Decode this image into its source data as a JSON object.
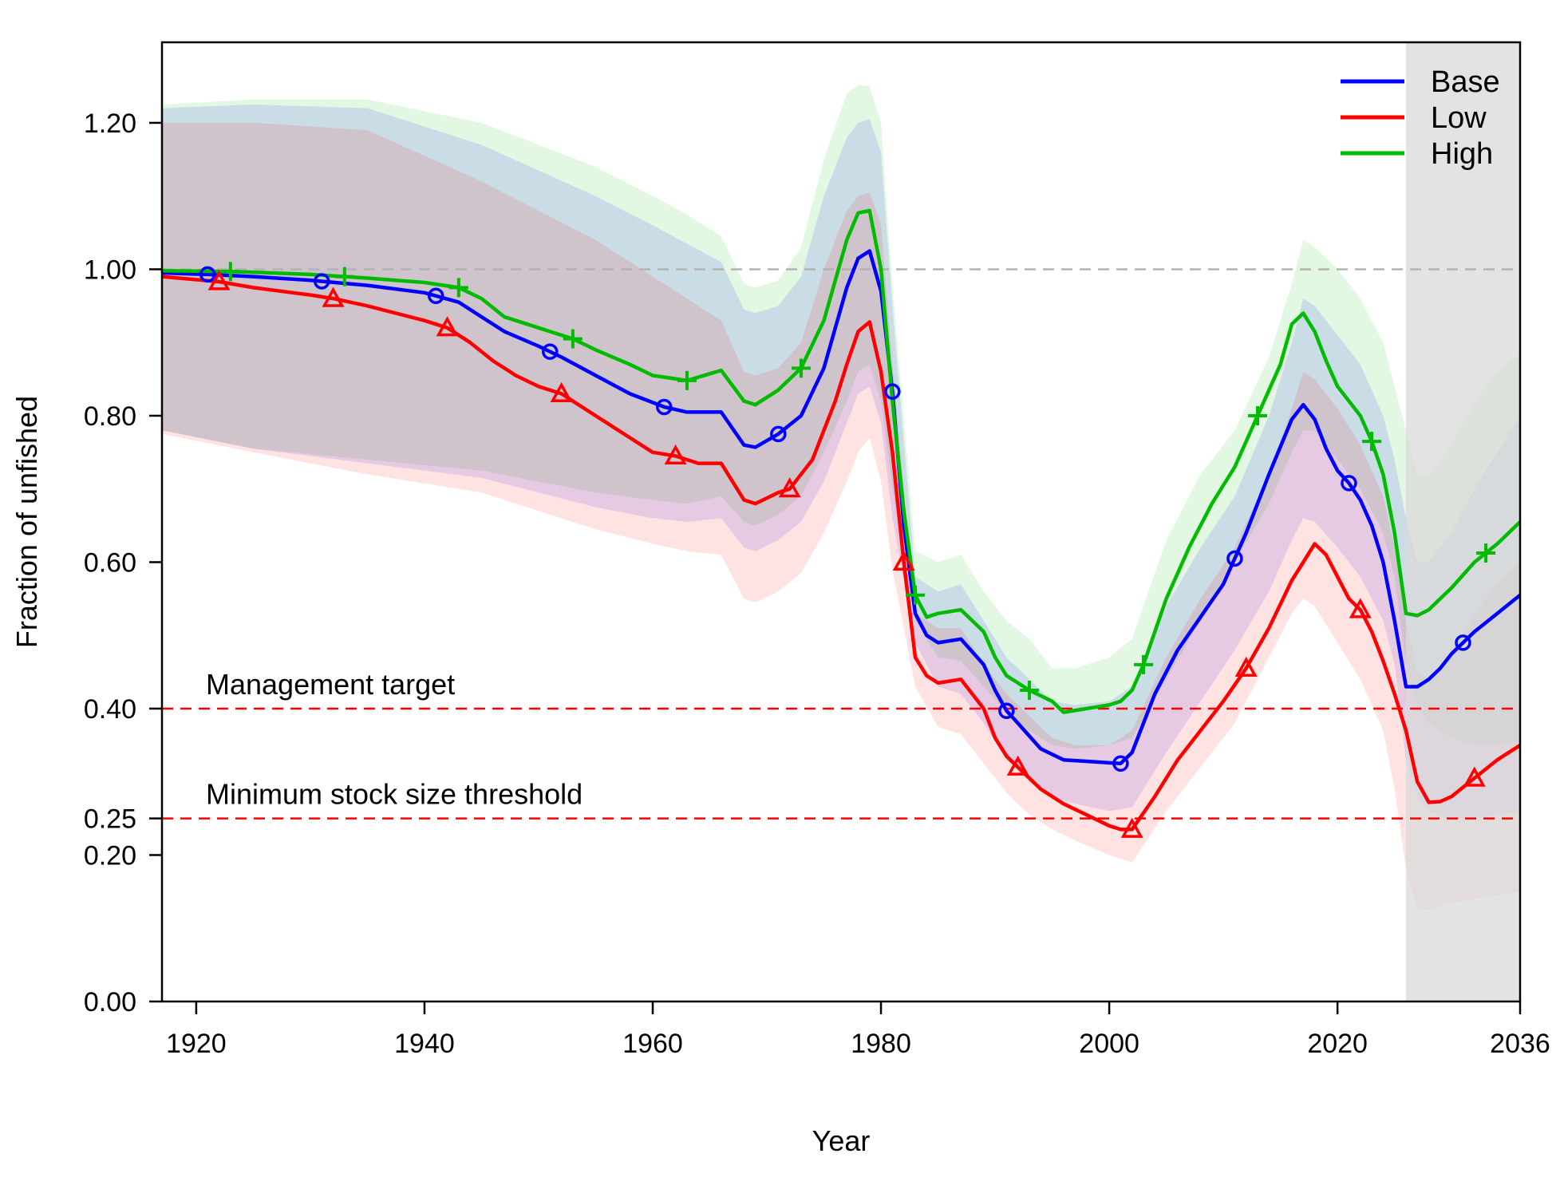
{
  "chart_data": {
    "type": "line",
    "title": "",
    "xlabel": "Year",
    "ylabel": "Fraction of unfished",
    "xlim": [
      1917,
      2036
    ],
    "ylim": [
      0,
      1.31
    ],
    "x_ticks": [
      1920,
      1940,
      1960,
      1980,
      2000,
      2020,
      2036
    ],
    "x_tick_labels": [
      "1920",
      "1940",
      "1960",
      "1980",
      "2000",
      "2020",
      "2036"
    ],
    "y_ticks": [
      0,
      0.2,
      0.25,
      0.4,
      0.6,
      0.8,
      1.0,
      1.2
    ],
    "y_tick_labels": [
      "0.00",
      "0.20",
      "0.25",
      "0.40",
      "0.60",
      "0.80",
      "1.00",
      "1.20"
    ],
    "forecast_start": 2026,
    "legend_position": "top-right",
    "reference_lines": [
      {
        "y": 1.0,
        "color": "#b3b3b3",
        "label": ""
      },
      {
        "y": 0.4,
        "color": "#ff0000",
        "label": "Management target"
      },
      {
        "y": 0.25,
        "color": "#ff0000",
        "label": "Minimum stock size threshold"
      }
    ],
    "series": [
      {
        "name": "Base",
        "color": "#0000ff",
        "marker": "circle",
        "x": [
          1917,
          1921,
          1925,
          1930,
          1935,
          1940,
          1943,
          1945,
          1947,
          1950,
          1952,
          1955,
          1958,
          1961,
          1963,
          1966,
          1968,
          1969,
          1971,
          1973,
          1975,
          1977,
          1978,
          1979,
          1980,
          1981,
          1982,
          1983,
          1984,
          1985,
          1987,
          1989,
          1990,
          1991,
          1992,
          1994,
          1996,
          1998,
          2000,
          2001,
          2002,
          2004,
          2006,
          2008,
          2010,
          2012,
          2014,
          2016,
          2017,
          2018,
          2019,
          2020,
          2021,
          2022,
          2023,
          2024,
          2025,
          2026,
          2027,
          2028,
          2029,
          2030,
          2031,
          2032,
          2034,
          2036
        ],
        "y": [
          0.995,
          0.993,
          0.99,
          0.985,
          0.978,
          0.968,
          0.955,
          0.935,
          0.915,
          0.895,
          0.88,
          0.855,
          0.83,
          0.812,
          0.805,
          0.805,
          0.76,
          0.757,
          0.775,
          0.8,
          0.865,
          0.975,
          1.015,
          1.025,
          0.97,
          0.833,
          0.65,
          0.53,
          0.5,
          0.49,
          0.495,
          0.46,
          0.425,
          0.397,
          0.38,
          0.345,
          0.33,
          0.328,
          0.326,
          0.325,
          0.34,
          0.42,
          0.48,
          0.525,
          0.57,
          0.64,
          0.72,
          0.795,
          0.815,
          0.795,
          0.755,
          0.725,
          0.708,
          0.685,
          0.65,
          0.6,
          0.52,
          0.43,
          0.43,
          0.44,
          0.455,
          0.475,
          0.49,
          0.505,
          0.53,
          0.555
        ]
      },
      {
        "name": "Low",
        "color": "#ff0000",
        "marker": "triangle",
        "x": [
          1917,
          1922,
          1925,
          1930,
          1932,
          1935,
          1940,
          1942,
          1944,
          1946,
          1948,
          1950,
          1952,
          1955,
          1958,
          1960,
          1962,
          1964,
          1966,
          1968,
          1969,
          1971,
          1972,
          1974,
          1976,
          1977,
          1978,
          1979,
          1980,
          1981,
          1982,
          1983,
          1984,
          1985,
          1987,
          1989,
          1990,
          1991,
          1992,
          1994,
          1996,
          1998,
          2000,
          2001,
          2002,
          2004,
          2006,
          2008,
          2010,
          2012,
          2014,
          2016,
          2017,
          2018,
          2019,
          2020,
          2021,
          2022,
          2023,
          2024,
          2025,
          2026,
          2027,
          2028,
          2029,
          2030,
          2032,
          2034,
          2036
        ],
        "y": [
          0.99,
          0.983,
          0.975,
          0.965,
          0.96,
          0.95,
          0.93,
          0.92,
          0.9,
          0.875,
          0.855,
          0.84,
          0.83,
          0.8,
          0.77,
          0.75,
          0.745,
          0.735,
          0.735,
          0.685,
          0.68,
          0.695,
          0.7,
          0.74,
          0.82,
          0.87,
          0.915,
          0.928,
          0.86,
          0.75,
          0.6,
          0.47,
          0.445,
          0.435,
          0.44,
          0.4,
          0.36,
          0.335,
          0.32,
          0.29,
          0.27,
          0.255,
          0.24,
          0.235,
          0.235,
          0.28,
          0.33,
          0.37,
          0.41,
          0.455,
          0.51,
          0.575,
          0.6,
          0.625,
          0.61,
          0.58,
          0.55,
          0.535,
          0.505,
          0.465,
          0.42,
          0.37,
          0.3,
          0.272,
          0.273,
          0.28,
          0.305,
          0.33,
          0.35
        ]
      },
      {
        "name": "High",
        "color": "#00bb00",
        "marker": "plus",
        "x": [
          1917,
          1923,
          1925,
          1930,
          1933,
          1935,
          1940,
          1943,
          1945,
          1947,
          1950,
          1953,
          1955,
          1958,
          1960,
          1963,
          1966,
          1968,
          1969,
          1971,
          1973,
          1975,
          1977,
          1978,
          1979,
          1980,
          1981,
          1982,
          1983,
          1984,
          1985,
          1987,
          1989,
          1990,
          1991,
          1993,
          1995,
          1996,
          1998,
          2000,
          2001,
          2002,
          2003,
          2005,
          2007,
          2009,
          2011,
          2013,
          2015,
          2016,
          2017,
          2018,
          2019,
          2020,
          2021,
          2022,
          2023,
          2024,
          2025,
          2026,
          2027,
          2028,
          2029,
          2030,
          2032,
          2034,
          2036
        ],
        "y": [
          0.998,
          0.997,
          0.996,
          0.993,
          0.99,
          0.988,
          0.982,
          0.975,
          0.96,
          0.935,
          0.92,
          0.905,
          0.89,
          0.87,
          0.855,
          0.848,
          0.862,
          0.82,
          0.815,
          0.835,
          0.865,
          0.93,
          1.04,
          1.077,
          1.08,
          1.0,
          0.82,
          0.67,
          0.555,
          0.525,
          0.53,
          0.535,
          0.505,
          0.47,
          0.445,
          0.425,
          0.41,
          0.395,
          0.4,
          0.405,
          0.41,
          0.425,
          0.46,
          0.55,
          0.62,
          0.68,
          0.73,
          0.8,
          0.87,
          0.925,
          0.94,
          0.915,
          0.875,
          0.84,
          0.82,
          0.8,
          0.765,
          0.72,
          0.64,
          0.53,
          0.527,
          0.535,
          0.55,
          0.565,
          0.6,
          0.625,
          0.655
        ]
      }
    ],
    "intervals": [
      {
        "series": "High",
        "color": "#00bb00",
        "x": [
          1917,
          1925,
          1935,
          1945,
          1950,
          1955,
          1960,
          1963,
          1966,
          1968,
          1969,
          1971,
          1973,
          1975,
          1977,
          1978,
          1979,
          1980,
          1981,
          1983,
          1985,
          1987,
          1989,
          1991,
          1993,
          1995,
          1997,
          2000,
          2002,
          2005,
          2008,
          2011,
          2014,
          2016,
          2017,
          2018,
          2020,
          2022,
          2024,
          2025,
          2026,
          2027,
          2028,
          2030,
          2032,
          2034,
          2036
        ],
        "lower": [
          0.78,
          0.755,
          0.74,
          0.725,
          0.71,
          0.695,
          0.685,
          0.68,
          0.69,
          0.655,
          0.65,
          0.665,
          0.69,
          0.75,
          0.82,
          0.86,
          0.87,
          0.82,
          0.7,
          0.52,
          0.47,
          0.465,
          0.43,
          0.395,
          0.37,
          0.35,
          0.345,
          0.35,
          0.36,
          0.44,
          0.52,
          0.6,
          0.68,
          0.75,
          0.78,
          0.78,
          0.74,
          0.7,
          0.64,
          0.58,
          0.46,
          0.4,
          0.38,
          0.36,
          0.35,
          0.35,
          0.355
        ],
        "upper": [
          1.225,
          1.232,
          1.232,
          1.2,
          1.17,
          1.14,
          1.1,
          1.075,
          1.045,
          0.98,
          0.975,
          0.985,
          1.03,
          1.15,
          1.24,
          1.252,
          1.25,
          1.2,
          0.98,
          0.615,
          0.6,
          0.61,
          0.56,
          0.52,
          0.495,
          0.455,
          0.455,
          0.47,
          0.495,
          0.63,
          0.72,
          0.78,
          0.88,
          0.98,
          1.04,
          1.03,
          1.0,
          0.96,
          0.9,
          0.84,
          0.78,
          0.72,
          0.72,
          0.76,
          0.82,
          0.86,
          0.885
        ]
      },
      {
        "series": "Base",
        "color": "#0000ff",
        "x": [
          1917,
          1925,
          1935,
          1945,
          1950,
          1955,
          1960,
          1963,
          1966,
          1968,
          1969,
          1971,
          1973,
          1975,
          1977,
          1978,
          1979,
          1980,
          1981,
          1983,
          1985,
          1987,
          1989,
          1991,
          1993,
          1995,
          1997,
          2000,
          2002,
          2005,
          2008,
          2011,
          2014,
          2016,
          2017,
          2018,
          2020,
          2022,
          2024,
          2025,
          2026,
          2027,
          2028,
          2030,
          2032,
          2034,
          2036
        ],
        "lower": [
          0.78,
          0.755,
          0.735,
          0.715,
          0.695,
          0.675,
          0.66,
          0.655,
          0.66,
          0.62,
          0.615,
          0.63,
          0.655,
          0.71,
          0.79,
          0.83,
          0.84,
          0.79,
          0.66,
          0.49,
          0.43,
          0.42,
          0.38,
          0.33,
          0.3,
          0.28,
          0.27,
          0.26,
          0.265,
          0.34,
          0.41,
          0.48,
          0.56,
          0.63,
          0.66,
          0.655,
          0.62,
          0.58,
          0.52,
          0.46,
          0.33,
          0.28,
          0.26,
          0.25,
          0.25,
          0.255,
          0.26
        ],
        "upper": [
          1.22,
          1.225,
          1.22,
          1.17,
          1.135,
          1.1,
          1.06,
          1.035,
          1.01,
          0.945,
          0.94,
          0.95,
          0.99,
          1.1,
          1.18,
          1.2,
          1.205,
          1.16,
          0.95,
          0.58,
          0.56,
          0.57,
          0.52,
          0.47,
          0.44,
          0.41,
          0.405,
          0.41,
          0.43,
          0.54,
          0.62,
          0.69,
          0.8,
          0.9,
          0.96,
          0.95,
          0.91,
          0.87,
          0.8,
          0.74,
          0.66,
          0.6,
          0.6,
          0.64,
          0.7,
          0.75,
          0.8
        ]
      },
      {
        "series": "Low",
        "color": "#ff0000",
        "x": [
          1917,
          1925,
          1935,
          1945,
          1950,
          1955,
          1960,
          1963,
          1966,
          1968,
          1969,
          1971,
          1973,
          1975,
          1977,
          1978,
          1979,
          1980,
          1981,
          1983,
          1985,
          1987,
          1989,
          1991,
          1993,
          1995,
          1997,
          2000,
          2002,
          2005,
          2008,
          2011,
          2014,
          2016,
          2017,
          2018,
          2020,
          2022,
          2024,
          2025,
          2026,
          2027,
          2028,
          2030,
          2032,
          2034,
          2036
        ],
        "lower": [
          0.775,
          0.75,
          0.72,
          0.695,
          0.67,
          0.645,
          0.625,
          0.615,
          0.61,
          0.55,
          0.545,
          0.56,
          0.585,
          0.64,
          0.71,
          0.75,
          0.77,
          0.71,
          0.59,
          0.43,
          0.375,
          0.365,
          0.325,
          0.285,
          0.255,
          0.235,
          0.22,
          0.2,
          0.19,
          0.26,
          0.32,
          0.38,
          0.47,
          0.53,
          0.55,
          0.54,
          0.49,
          0.44,
          0.37,
          0.29,
          0.18,
          0.125,
          0.125,
          0.135,
          0.14,
          0.145,
          0.15
        ],
        "upper": [
          1.2,
          1.2,
          1.19,
          1.12,
          1.08,
          1.04,
          0.99,
          0.96,
          0.93,
          0.86,
          0.855,
          0.865,
          0.9,
          1.0,
          1.08,
          1.1,
          1.105,
          1.06,
          0.87,
          0.53,
          0.51,
          0.51,
          0.46,
          0.42,
          0.39,
          0.36,
          0.35,
          0.35,
          0.37,
          0.47,
          0.55,
          0.62,
          0.72,
          0.81,
          0.86,
          0.85,
          0.81,
          0.76,
          0.69,
          0.62,
          0.52,
          0.45,
          0.44,
          0.48,
          0.53,
          0.57,
          0.6
        ]
      }
    ],
    "markers": [
      {
        "series": "Base",
        "x": [
          1921,
          1931,
          1941,
          1951,
          1961,
          1971,
          1981,
          1991,
          2001,
          2011,
          2021,
          2031
        ]
      },
      {
        "series": "Low",
        "x": [
          1922,
          1932,
          1942,
          1952,
          1962,
          1972,
          1982,
          1992,
          2002,
          2012,
          2022,
          2032
        ]
      },
      {
        "series": "High",
        "x": [
          1923,
          1933,
          1943,
          1953,
          1963,
          1973,
          1983,
          1993,
          2003,
          2013,
          2023,
          2033
        ]
      }
    ]
  }
}
